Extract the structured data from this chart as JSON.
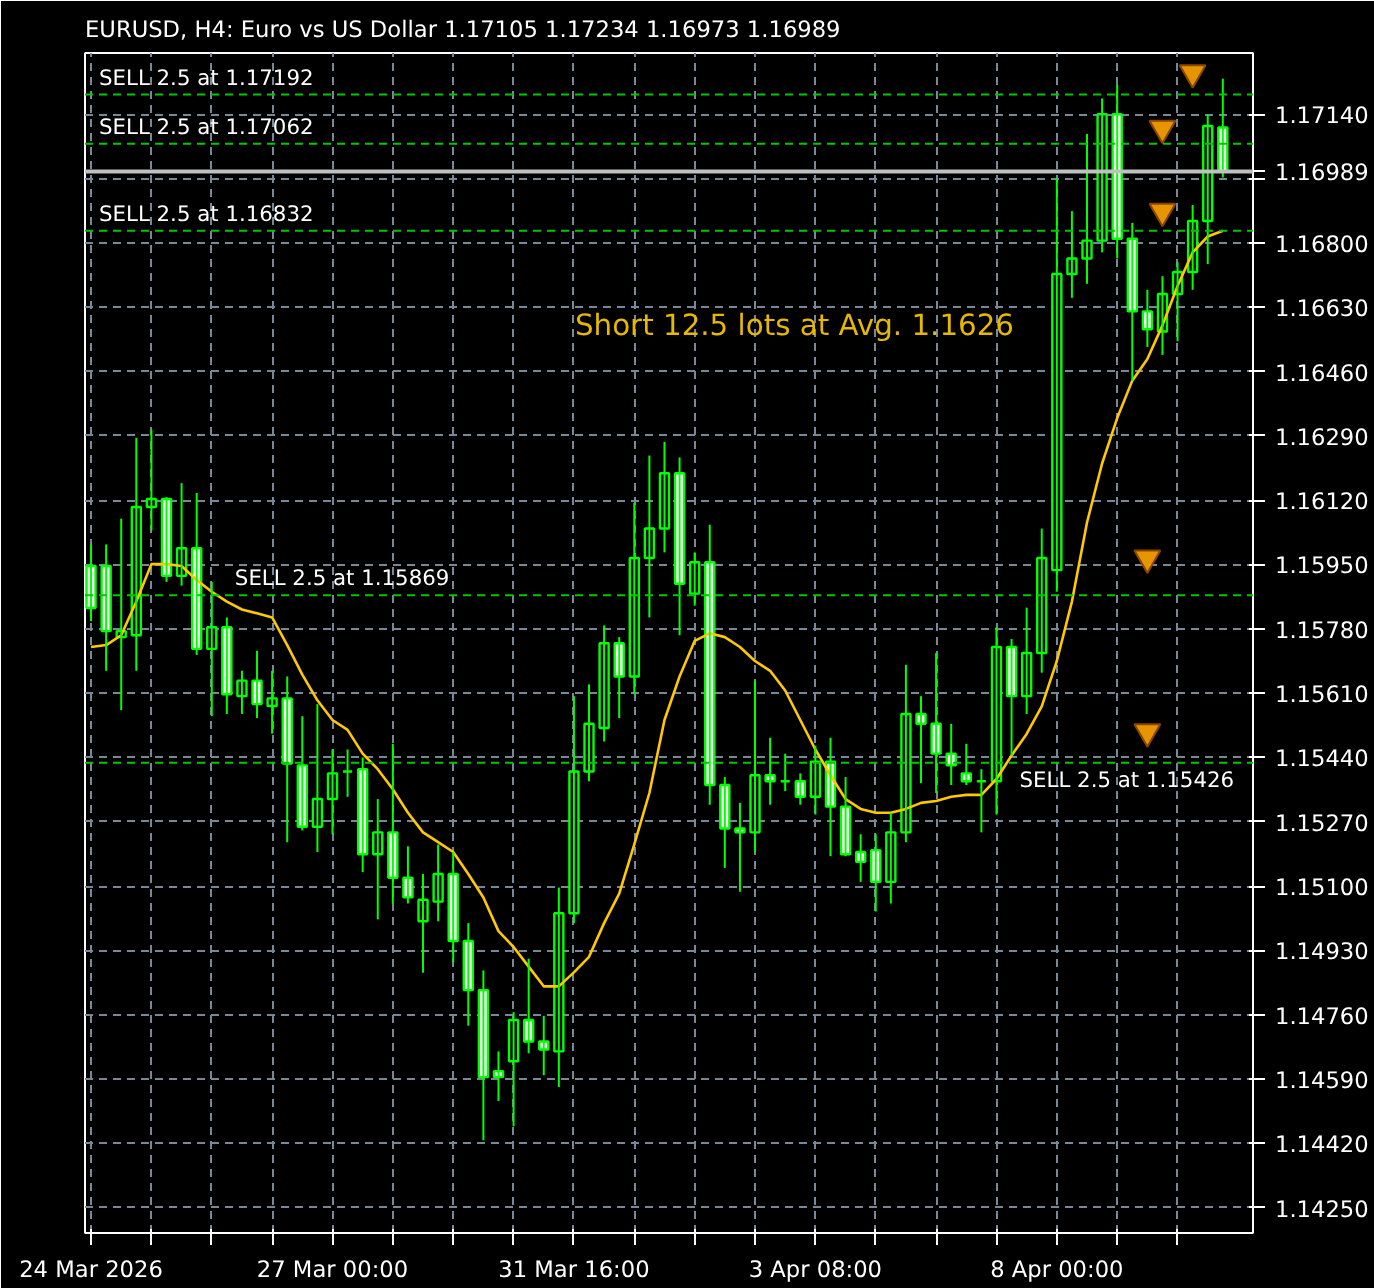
{
  "chart_data": {
    "type": "candlestick",
    "title": "EURUSD, H4:  Euro vs US Dollar  1.17105 1.17234 1.16973 1.16989",
    "annotations": [
      "Short 12.5 lots at Avg. 1.1626"
    ],
    "color": "#00ff00",
    "categories": [
      "24 Mar 2026",
      null,
      null,
      null,
      null,
      null,
      null,
      null,
      null,
      null,
      null,
      null,
      null,
      null,
      null,
      null,
      "27 Mar 00:00",
      null,
      null,
      null,
      null,
      null,
      null,
      null,
      null,
      null,
      null,
      null,
      null,
      null,
      null,
      null,
      "31 Mar 16:00",
      null,
      null,
      null,
      null,
      null,
      null,
      null,
      null,
      null,
      null,
      null,
      null,
      null,
      null,
      null,
      "3 Apr 08:00",
      null,
      null,
      null,
      null,
      null,
      null,
      null,
      null,
      null,
      null,
      null,
      null,
      null,
      null,
      null,
      "8 Apr 00:00",
      null,
      null,
      null,
      null,
      null,
      null,
      null,
      null,
      null,
      null,
      null
    ],
    "ohlc": [
      [
        1.15946,
        1.16003,
        1.158,
        1.15835
      ],
      [
        1.15946,
        1.16003,
        1.15669,
        1.15774
      ],
      [
        1.15758,
        1.16071,
        1.15565,
        1.15774
      ],
      [
        1.15763,
        1.16285,
        1.15669,
        1.16102
      ],
      [
        1.16102,
        1.16306,
        1.1604,
        1.16123
      ],
      [
        1.16123,
        1.16128,
        1.15904,
        1.1592
      ],
      [
        1.1592,
        1.16165,
        1.15894,
        1.15993
      ],
      [
        1.15993,
        1.16139,
        1.15711,
        1.15727
      ],
      [
        1.15727,
        1.15904,
        1.15549,
        1.15784
      ],
      [
        1.15784,
        1.1581,
        1.15555,
        1.15607
      ],
      [
        1.15602,
        1.15669,
        1.15555,
        1.15643
      ],
      [
        1.15643,
        1.15722,
        1.15544,
        1.15581
      ],
      [
        1.15576,
        1.15669,
        1.15503,
        1.15596
      ],
      [
        1.15596,
        1.15654,
        1.15216,
        1.15424
      ],
      [
        1.15419,
        1.15549,
        1.15247,
        1.15257
      ],
      [
        1.15257,
        1.15581,
        1.1519,
        1.1533
      ],
      [
        1.1533,
        1.15461,
        1.15237,
        1.15398
      ],
      [
        1.15403,
        1.15461,
        1.15336,
        1.15403
      ],
      [
        1.15409,
        1.1544,
        1.15137,
        1.15184
      ],
      [
        1.15184,
        1.1533,
        1.15012,
        1.15242
      ],
      [
        1.15242,
        1.15476,
        1.15054,
        1.15122
      ],
      [
        1.15122,
        1.15205,
        1.15054,
        1.1507
      ],
      [
        1.15007,
        1.15132,
        1.14871,
        1.15064
      ],
      [
        1.15059,
        1.1521,
        1.15007,
        1.15132
      ],
      [
        1.15132,
        1.1519,
        1.14898,
        1.14955
      ],
      [
        1.14955,
        1.15002,
        1.14731,
        1.14825
      ],
      [
        1.14825,
        1.14877,
        1.14428,
        1.14595
      ],
      [
        1.14611,
        1.14663,
        1.14532,
        1.14595
      ],
      [
        1.14637,
        1.14767,
        1.14465,
        1.14746
      ],
      [
        1.14746,
        1.14908,
        1.14658,
        1.14689
      ],
      [
        1.14689,
        1.14757,
        1.146,
        1.14668
      ],
      [
        1.14663,
        1.15096,
        1.14569,
        1.15028
      ],
      [
        1.15028,
        1.15602,
        1.15002,
        1.15403
      ],
      [
        1.15403,
        1.15633,
        1.15377,
        1.15529
      ],
      [
        1.15518,
        1.15789,
        1.15482,
        1.15742
      ],
      [
        1.15742,
        1.15758,
        1.15544,
        1.15654
      ],
      [
        1.15654,
        1.16113,
        1.15607,
        1.15967
      ],
      [
        1.15967,
        1.16238,
        1.1581,
        1.16045
      ],
      [
        1.16045,
        1.16274,
        1.15982,
        1.16191
      ],
      [
        1.16191,
        1.16233,
        1.15763,
        1.15899
      ],
      [
        1.15873,
        1.15982,
        1.15841,
        1.15956
      ],
      [
        1.15956,
        1.16055,
        1.15315,
        1.15367
      ],
      [
        1.15367,
        1.15388,
        1.15148,
        1.15252
      ],
      [
        1.15252,
        1.1532,
        1.15085,
        1.15242
      ],
      [
        1.15242,
        1.15643,
        1.1519,
        1.15393
      ],
      [
        1.15393,
        1.15492,
        1.15315,
        1.15377
      ],
      [
        1.15377,
        1.1545,
        1.15351,
        1.15377
      ],
      [
        1.15377,
        1.15398,
        1.15315,
        1.15336
      ],
      [
        1.15336,
        1.15471,
        1.15289,
        1.15429
      ],
      [
        1.15429,
        1.15492,
        1.15179,
        1.1531
      ],
      [
        1.1531,
        1.15388,
        1.15179,
        1.15184
      ],
      [
        1.1519,
        1.15237,
        1.15111,
        1.15164
      ],
      [
        1.15195,
        1.15237,
        1.15033,
        1.15111
      ],
      [
        1.15111,
        1.15294,
        1.15054,
        1.15242
      ],
      [
        1.15242,
        1.15685,
        1.15216,
        1.15555
      ],
      [
        1.15555,
        1.15602,
        1.15372,
        1.15529
      ],
      [
        1.15529,
        1.15716,
        1.15346,
        1.1545
      ],
      [
        1.1545,
        1.15529,
        1.15367,
        1.15419
      ],
      [
        1.15398,
        1.15476,
        1.15367,
        1.15377
      ],
      [
        1.15377,
        1.15409,
        1.15242,
        1.15377
      ],
      [
        1.15377,
        1.15784,
        1.15289,
        1.15732
      ],
      [
        1.15732,
        1.15753,
        1.15445,
        1.15602
      ],
      [
        1.15602,
        1.15836,
        1.15555,
        1.15716
      ],
      [
        1.15716,
        1.16045,
        1.15664,
        1.15967
      ],
      [
        1.15935,
        1.16971,
        1.15878,
        1.16718
      ],
      [
        1.16718,
        1.16884,
        1.16655,
        1.16759
      ],
      [
        1.16759,
        1.17088,
        1.16692,
        1.16806
      ],
      [
        1.16806,
        1.17182,
        1.16775,
        1.1714
      ],
      [
        1.1714,
        1.17218,
        1.16759,
        1.16811
      ],
      [
        1.16811,
        1.16853,
        1.16436,
        1.16619
      ],
      [
        1.16619,
        1.16676,
        1.16525,
        1.16572
      ],
      [
        1.16566,
        1.16712,
        1.16504,
        1.16665
      ],
      [
        1.16665,
        1.16749,
        1.1654,
        1.16723
      ],
      [
        1.16723,
        1.169,
        1.16676,
        1.16858
      ],
      [
        1.16858,
        1.1714,
        1.16744,
        1.17109
      ],
      [
        1.17105,
        1.17234,
        1.16973,
        1.16989
      ]
    ],
    "series": [
      {
        "type": "line",
        "color": "#ffc800",
        "values": [
          1.15732,
          1.15737,
          1.15763,
          1.15852,
          1.15951,
          1.15951,
          1.15946,
          1.15909,
          1.15878,
          1.15852,
          1.15831,
          1.15821,
          1.1581,
          1.15737,
          1.15659,
          1.15591,
          1.15539,
          1.15513,
          1.1545,
          1.15409,
          1.15356,
          1.15294,
          1.15242,
          1.15216,
          1.1519,
          1.15132,
          1.1507,
          1.14981,
          1.14939,
          1.14887,
          1.14835,
          1.14835,
          1.14872,
          1.14913,
          1.15002,
          1.1508,
          1.1521,
          1.15346,
          1.15539,
          1.15654,
          1.15748,
          1.15768,
          1.15758,
          1.15732,
          1.15695,
          1.15669,
          1.15617,
          1.15539,
          1.15461,
          1.15393,
          1.1533,
          1.15304,
          1.15294,
          1.15294,
          1.15304,
          1.1532,
          1.15325,
          1.15336,
          1.15341,
          1.15341,
          1.15383,
          1.15445,
          1.15502,
          1.15575,
          1.15695,
          1.15852,
          1.16061,
          1.16217,
          1.16337,
          1.16436,
          1.16493,
          1.16582,
          1.16686,
          1.16775,
          1.16817,
          1.16832
        ]
      },
      {
        "type": "scatter",
        "marker": "triangle",
        "color": "#ffa500",
        "values": [
          null,
          null,
          null,
          null,
          null,
          null,
          null,
          null,
          null,
          null,
          null,
          null,
          null,
          null,
          null,
          null,
          null,
          null,
          null,
          null,
          null,
          null,
          null,
          null,
          null,
          null,
          null,
          null,
          null,
          null,
          null,
          null,
          null,
          null,
          null,
          null,
          null,
          null,
          null,
          null,
          null,
          null,
          null,
          null,
          null,
          null,
          null,
          null,
          null,
          null,
          null,
          null,
          null,
          null,
          null,
          null,
          null,
          null,
          null,
          null,
          null,
          null,
          null,
          null,
          null,
          null,
          null,
          null,
          null,
          null,
          1.15967,
          1.17103,
          null,
          1.1725,
          null,
          null
        ]
      },
      {
        "type": "scatter",
        "marker": "triangle",
        "color": "#ffa500",
        "values": [
          null,
          null,
          null,
          null,
          null,
          null,
          null,
          null,
          null,
          null,
          null,
          null,
          null,
          null,
          null,
          null,
          null,
          null,
          null,
          null,
          null,
          null,
          null,
          null,
          null,
          null,
          null,
          null,
          null,
          null,
          null,
          null,
          null,
          null,
          null,
          null,
          null,
          null,
          null,
          null,
          null,
          null,
          null,
          null,
          null,
          null,
          null,
          null,
          null,
          null,
          null,
          null,
          null,
          null,
          null,
          null,
          null,
          null,
          null,
          null,
          null,
          null,
          null,
          null,
          null,
          null,
          null,
          null,
          null,
          null,
          1.15508,
          1.16884,
          null,
          null,
          null,
          null
        ]
      }
    ],
    "ref_lines": [
      {
        "axis": "y",
        "value": 1.17192,
        "label": "SELL 2.5 at 1.17192",
        "color": "#00c800",
        "line_style": "dashed"
      },
      {
        "axis": "y",
        "value": 1.17062,
        "label": "SELL 2.5 at 1.17062",
        "color": "#00c800",
        "line_style": "dashed"
      },
      {
        "axis": "y",
        "value": 1.16832,
        "label": "SELL 2.5 at 1.16832",
        "color": "#00c800",
        "line_style": "dashed"
      },
      {
        "axis": "y",
        "value": 1.15869,
        "label": "SELL 2.5 at 1.15869",
        "color": "#00c800",
        "line_style": "dashed"
      },
      {
        "axis": "y",
        "value": 1.15426,
        "label": "SELL 2.5 at 1.15426",
        "color": "#00c800",
        "line_style": "dashed"
      },
      {
        "axis": "y",
        "value": 1.16989,
        "label": "1.16989",
        "color": "#c0c0c0",
        "line_style": "solid"
      }
    ],
    "ylim": [
      1.14183,
      1.17302
    ],
    "yticks": [
      {
        "value": 1.1425,
        "label": "1.14250"
      },
      {
        "value": 1.1442,
        "label": "1.14420"
      },
      {
        "value": 1.1459,
        "label": "1.14590"
      },
      {
        "value": 1.1476,
        "label": "1.14760"
      },
      {
        "value": 1.1493,
        "label": "1.14930"
      },
      {
        "value": 1.151,
        "label": "1.15100"
      },
      {
        "value": 1.1527,
        "label": "1.15270"
      },
      {
        "value": 1.1544,
        "label": "1.15440"
      },
      {
        "value": 1.1561,
        "label": "1.15610"
      },
      {
        "value": 1.1578,
        "label": "1.15780"
      },
      {
        "value": 1.1595,
        "label": "1.15950"
      },
      {
        "value": 1.1612,
        "label": "1.16120"
      },
      {
        "value": 1.1629,
        "label": "1.16290"
      },
      {
        "value": 1.1646,
        "label": "1.16460"
      },
      {
        "value": 1.1663,
        "label": "1.16630"
      },
      {
        "value": 1.168,
        "label": "1.16800"
      },
      {
        "value": 1.1697,
        "label": null
      },
      {
        "value": 1.1714,
        "label": "1.17140"
      }
    ],
    "grid": true
  }
}
